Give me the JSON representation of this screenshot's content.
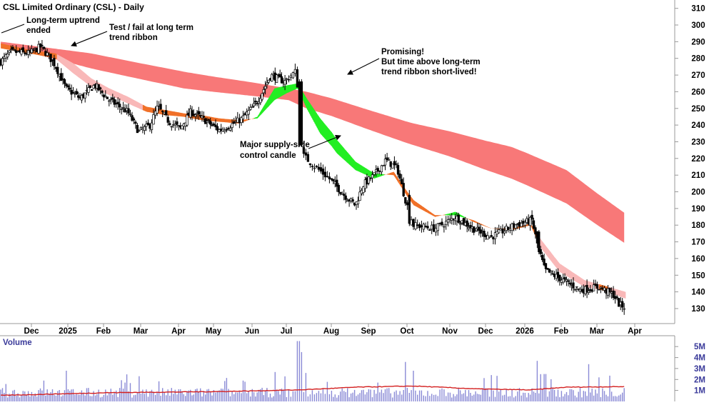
{
  "chart_data": {
    "type": "candlestick",
    "title": "CSL Limited Ordinary (CSL) - Daily",
    "volume_title": "Volume",
    "x_tick_labels": [
      "Dec",
      "2025",
      "Feb",
      "Mar",
      "Apr",
      "May",
      "Jun",
      "Jul",
      "Aug",
      "Sep",
      "Oct",
      "Nov",
      "Dec",
      "2026",
      "Feb",
      "Mar",
      "Apr"
    ],
    "x_ticks_bold": [
      "2025",
      "2026"
    ],
    "price_axis": {
      "ticks": [
        130,
        140,
        150,
        160,
        170,
        180,
        190,
        200,
        210,
        220,
        230,
        240,
        250,
        260,
        270,
        280,
        290,
        300,
        310
      ],
      "range": [
        121,
        315
      ]
    },
    "volume_axis": {
      "ticks": [
        "1M",
        "2M",
        "3M",
        "4M",
        "5M"
      ],
      "values": [
        1,
        2,
        3,
        4,
        5
      ],
      "range": [
        0,
        5.6
      ]
    },
    "price_path": [
      {
        "m": 0.0,
        "p": 278
      },
      {
        "m": 0.3,
        "p": 284
      },
      {
        "m": 0.8,
        "p": 283
      },
      {
        "m": 1.1,
        "p": 287
      },
      {
        "m": 1.3,
        "p": 282
      },
      {
        "m": 1.5,
        "p": 276
      },
      {
        "m": 1.8,
        "p": 262
      },
      {
        "m": 2.2,
        "p": 256
      },
      {
        "m": 2.6,
        "p": 264
      },
      {
        "m": 3.0,
        "p": 255
      },
      {
        "m": 3.5,
        "p": 248
      },
      {
        "m": 3.8,
        "p": 236
      },
      {
        "m": 4.1,
        "p": 240
      },
      {
        "m": 4.3,
        "p": 251
      },
      {
        "m": 4.6,
        "p": 242
      },
      {
        "m": 4.9,
        "p": 238
      },
      {
        "m": 5.2,
        "p": 248
      },
      {
        "m": 5.6,
        "p": 243
      },
      {
        "m": 6.0,
        "p": 237
      },
      {
        "m": 6.3,
        "p": 240
      },
      {
        "m": 6.6,
        "p": 244
      },
      {
        "m": 7.0,
        "p": 254
      },
      {
        "m": 7.4,
        "p": 270
      },
      {
        "m": 7.8,
        "p": 266
      },
      {
        "m": 8.05,
        "p": 272
      },
      {
        "m": 8.12,
        "p": 260
      },
      {
        "m": 8.22,
        "p": 222
      },
      {
        "m": 8.45,
        "p": 216
      },
      {
        "m": 8.8,
        "p": 208
      },
      {
        "m": 9.2,
        "p": 198
      },
      {
        "m": 9.5,
        "p": 192
      },
      {
        "m": 9.7,
        "p": 204
      },
      {
        "m": 10.0,
        "p": 210
      },
      {
        "m": 10.3,
        "p": 219
      },
      {
        "m": 10.6,
        "p": 214
      },
      {
        "m": 10.8,
        "p": 196
      },
      {
        "m": 11.0,
        "p": 180
      },
      {
        "m": 11.5,
        "p": 178
      },
      {
        "m": 12.0,
        "p": 185
      },
      {
        "m": 12.5,
        "p": 178
      },
      {
        "m": 13.0,
        "p": 173
      },
      {
        "m": 13.6,
        "p": 180
      },
      {
        "m": 14.05,
        "p": 183
      },
      {
        "m": 14.2,
        "p": 168
      },
      {
        "m": 14.4,
        "p": 153
      },
      {
        "m": 14.9,
        "p": 147
      },
      {
        "m": 15.4,
        "p": 141
      },
      {
        "m": 15.9,
        "p": 143
      },
      {
        "m": 16.3,
        "p": 138
      },
      {
        "m": 16.45,
        "p": 132
      },
      {
        "m": 16.6,
        "p": 131
      }
    ],
    "long_term_ribbon": [
      {
        "m": 0.0,
        "top": 290,
        "bottom": 288
      },
      {
        "m": 2.5,
        "top": 283,
        "bottom": 274
      },
      {
        "m": 5.0,
        "top": 272,
        "bottom": 262
      },
      {
        "m": 7.9,
        "top": 262,
        "bottom": 255
      },
      {
        "m": 8.3,
        "top": 260,
        "bottom": 250
      },
      {
        "m": 11.0,
        "top": 241,
        "bottom": 228
      },
      {
        "m": 13.5,
        "top": 227,
        "bottom": 208
      },
      {
        "m": 15.0,
        "top": 213,
        "bottom": 193
      },
      {
        "m": 16.6,
        "top": 187,
        "bottom": 169
      }
    ],
    "short_term_ribbon": [
      {
        "m": 0.0,
        "a": 289,
        "b": 286
      },
      {
        "m": 0.8,
        "a": 285,
        "b": 283
      },
      {
        "m": 1.5,
        "a": 283,
        "b": 280
      },
      {
        "m": 2.0,
        "a": 277,
        "b": 271
      },
      {
        "m": 2.5,
        "a": 268,
        "b": 263
      },
      {
        "m": 3.0,
        "a": 262,
        "b": 258
      },
      {
        "m": 3.5,
        "a": 257,
        "b": 253
      },
      {
        "m": 4.0,
        "a": 251,
        "b": 248
      },
      {
        "m": 4.5,
        "a": 249,
        "b": 246
      },
      {
        "m": 5.0,
        "a": 247,
        "b": 245
      },
      {
        "m": 5.5,
        "a": 246,
        "b": 243
      },
      {
        "m": 6.0,
        "a": 244,
        "b": 242
      },
      {
        "m": 6.5,
        "a": 243,
        "b": 241
      },
      {
        "m": 7.0,
        "a": 244,
        "b": 245
      },
      {
        "m": 7.5,
        "a": 255,
        "b": 262
      },
      {
        "m": 8.1,
        "a": 262,
        "b": 265
      },
      {
        "m": 8.3,
        "a": 250,
        "b": 256
      },
      {
        "m": 8.6,
        "a": 235,
        "b": 244
      },
      {
        "m": 9.0,
        "a": 223,
        "b": 231
      },
      {
        "m": 9.5,
        "a": 213,
        "b": 218
      },
      {
        "m": 10.0,
        "a": 208,
        "b": 211
      },
      {
        "m": 10.5,
        "a": 212,
        "b": 210
      },
      {
        "m": 11.0,
        "a": 195,
        "b": 192
      },
      {
        "m": 11.5,
        "a": 186,
        "b": 185
      },
      {
        "m": 12.0,
        "a": 186,
        "b": 188
      },
      {
        "m": 12.5,
        "a": 183,
        "b": 182
      },
      {
        "m": 13.0,
        "a": 178,
        "b": 178
      },
      {
        "m": 13.5,
        "a": 178,
        "b": 177
      },
      {
        "m": 14.0,
        "a": 181,
        "b": 180
      },
      {
        "m": 14.3,
        "a": 171,
        "b": 166
      },
      {
        "m": 14.8,
        "a": 157,
        "b": 152
      },
      {
        "m": 15.5,
        "a": 147,
        "b": 143
      },
      {
        "m": 16.0,
        "a": 144,
        "b": 141
      },
      {
        "m": 16.6,
        "a": 140,
        "b": 136
      }
    ],
    "volume_spikes": [
      {
        "m": 8.12,
        "v": 5.5
      },
      {
        "m": 8.2,
        "v": 4.5
      },
      {
        "m": 8.3,
        "v": 2.6
      },
      {
        "m": 10.8,
        "v": 3.6
      },
      {
        "m": 11.0,
        "v": 2.8
      },
      {
        "m": 14.2,
        "v": 3.7
      },
      {
        "m": 14.4,
        "v": 2.5
      },
      {
        "m": 15.6,
        "v": 3.4
      },
      {
        "m": 3.8,
        "v": 2.3
      },
      {
        "m": 1.2,
        "v": 1.9
      },
      {
        "m": 6.6,
        "v": 1.9
      },
      {
        "m": 13.0,
        "v": 2.4
      }
    ],
    "volume_average": [
      {
        "m": 0.0,
        "v": 0.55
      },
      {
        "m": 3.0,
        "v": 0.8
      },
      {
        "m": 6.0,
        "v": 0.9
      },
      {
        "m": 8.1,
        "v": 1.05
      },
      {
        "m": 9.5,
        "v": 1.3
      },
      {
        "m": 11.0,
        "v": 1.4
      },
      {
        "m": 12.5,
        "v": 1.15
      },
      {
        "m": 14.0,
        "v": 1.05
      },
      {
        "m": 15.0,
        "v": 1.3
      },
      {
        "m": 16.6,
        "v": 1.35
      }
    ],
    "annotations": [
      {
        "id": "uptrend",
        "lines": [
          "Long-term uptrend",
          "ended"
        ]
      },
      {
        "id": "testfail",
        "lines": [
          "Test / fail at long term",
          "trend ribbon"
        ]
      },
      {
        "id": "promising",
        "lines": [
          "Promising!",
          "But time above long-term",
          "trend ribbon short-lived!"
        ]
      },
      {
        "id": "supply",
        "lines": [
          "Major supply-side",
          "control candle"
        ]
      }
    ],
    "colors": {
      "long_ribbon": "#f87878",
      "short_ribbon_down": "#f9b8b8",
      "short_ribbon_cross": "#f07028",
      "short_ribbon_up": "#22ee22",
      "volume_bars": "#8a8ad6",
      "volume_average": "#d42020",
      "axis_text": "#000000",
      "volume_axis_text": "#3a3a9a"
    },
    "grid": false
  }
}
